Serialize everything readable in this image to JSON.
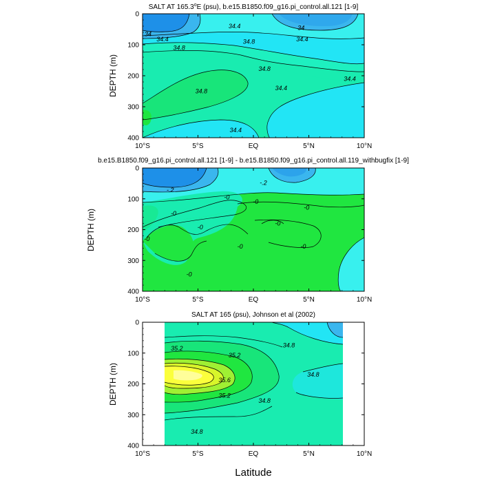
{
  "colors": {
    "deep_blue": "#1e90e8",
    "mid_blue": "#3ab6ee",
    "cyan": "#22e5f5",
    "light_cyan": "#38f0ee",
    "aqua": "#1ef0c0",
    "teal_green": "#19ecb0",
    "green": "#18e57a",
    "bright_green": "#20e640",
    "lime": "#9ff033",
    "yellow_green": "#d8f52a",
    "yellow": "#fbff3c",
    "pale_yellow": "#fffe9a"
  },
  "chart_data": [
    {
      "type": "contour",
      "title": "SALT AT 165.3°E (psu), b.e15.B1850.f09_g16.pi_control.all.121 [1-9]",
      "title_parts": {
        "pre": "SALT AT 165.3",
        "sup": "o",
        "post": "E (psu), b.e15.B1850.f09_g16.pi_control.all.121 [1-9]"
      },
      "ylabel": "DEPTH (m)",
      "xlim": [
        -10,
        10
      ],
      "ylim": [
        400,
        0
      ],
      "x_ticks": [
        {
          "value": -10,
          "label": "10°S"
        },
        {
          "value": -5,
          "label": "5°S"
        },
        {
          "value": 0,
          "label": "EQ"
        },
        {
          "value": 5,
          "label": "5°N"
        },
        {
          "value": 10,
          "label": "10°N"
        }
      ],
      "y_ticks": [
        0,
        100,
        200,
        300,
        400
      ],
      "contour_labels": [
        {
          "text": "34",
          "lat": -9.5,
          "depth": 65
        },
        {
          "text": "34.4",
          "lat": -8.2,
          "depth": 82
        },
        {
          "text": "34.8",
          "lat": -6.7,
          "depth": 110
        },
        {
          "text": "34.4",
          "lat": -1.7,
          "depth": 40
        },
        {
          "text": "34.8",
          "lat": -0.4,
          "depth": 90
        },
        {
          "text": "34",
          "lat": 4.3,
          "depth": 45
        },
        {
          "text": "34.4",
          "lat": 4.4,
          "depth": 82
        },
        {
          "text": "34.8",
          "lat": 1.0,
          "depth": 178
        },
        {
          "text": "34.8",
          "lat": -4.7,
          "depth": 250
        },
        {
          "text": "34.4",
          "lat": 2.5,
          "depth": 240
        },
        {
          "text": "34.4",
          "lat": 8.7,
          "depth": 210
        },
        {
          "text": "34.4",
          "lat": -1.6,
          "depth": 375
        }
      ]
    },
    {
      "type": "contour",
      "title": "b.e15.B1850.f09_g16.pi_control.all.121 [1-9] - b.e15.B1850.f09_g16.pi_control.all.119_withbugfix [1-9]",
      "ylabel": "DEPTH (m)",
      "xlim": [
        -10,
        10
      ],
      "ylim": [
        400,
        0
      ],
      "x_ticks": [
        {
          "value": -10,
          "label": "10°S"
        },
        {
          "value": -5,
          "label": "5°S"
        },
        {
          "value": 0,
          "label": "EQ"
        },
        {
          "value": 5,
          "label": "5°N"
        },
        {
          "value": 10,
          "label": "10°N"
        }
      ],
      "y_ticks": [
        0,
        100,
        200,
        300,
        400
      ],
      "contour_labels": [
        {
          "text": "-.2",
          "lat": -7.5,
          "depth": 72
        },
        {
          "text": "-.2",
          "lat": 0.9,
          "depth": 48
        },
        {
          "text": "-0",
          "lat": -2.4,
          "depth": 95
        },
        {
          "text": "-0",
          "lat": 0.2,
          "depth": 110
        },
        {
          "text": "-0",
          "lat": -7.2,
          "depth": 148
        },
        {
          "text": "-0",
          "lat": -4.8,
          "depth": 192
        },
        {
          "text": "-0",
          "lat": 4.8,
          "depth": 128
        },
        {
          "text": "-0",
          "lat": 2.2,
          "depth": 180
        },
        {
          "text": "-0",
          "lat": -1.2,
          "depth": 255
        },
        {
          "text": "-0",
          "lat": 4.5,
          "depth": 255
        },
        {
          "text": "-0",
          "lat": -9.6,
          "depth": 230
        },
        {
          "text": "-0",
          "lat": -5.8,
          "depth": 345
        }
      ]
    },
    {
      "type": "contour",
      "title": "SALT AT 165 (psu), Johnson et al (2002)",
      "ylabel": "DEPTH (m)",
      "xlabel": "Latitude",
      "xlim": [
        -10,
        10
      ],
      "ylim": [
        400,
        0
      ],
      "data_extent": {
        "lat": [
          -8,
          8
        ],
        "depth": [
          10,
          400
        ]
      },
      "x_ticks": [
        {
          "value": -10,
          "label": "10°S"
        },
        {
          "value": -5,
          "label": "5°S"
        },
        {
          "value": 0,
          "label": "EQ"
        },
        {
          "value": 5,
          "label": "5°N"
        },
        {
          "value": 10,
          "label": "10°N"
        }
      ],
      "y_ticks": [
        0,
        100,
        200,
        300,
        400
      ],
      "contour_labels": [
        {
          "text": "35.2",
          "lat": -6.9,
          "depth": 85
        },
        {
          "text": "35.2",
          "lat": -1.7,
          "depth": 107
        },
        {
          "text": "35.6",
          "lat": -2.6,
          "depth": 188
        },
        {
          "text": "35.2",
          "lat": -2.6,
          "depth": 238
        },
        {
          "text": "34.8",
          "lat": 3.2,
          "depth": 75
        },
        {
          "text": "34.8",
          "lat": 5.4,
          "depth": 170
        },
        {
          "text": "34.8",
          "lat": 1.0,
          "depth": 255
        },
        {
          "text": "34.8",
          "lat": -5.1,
          "depth": 355
        }
      ]
    }
  ]
}
